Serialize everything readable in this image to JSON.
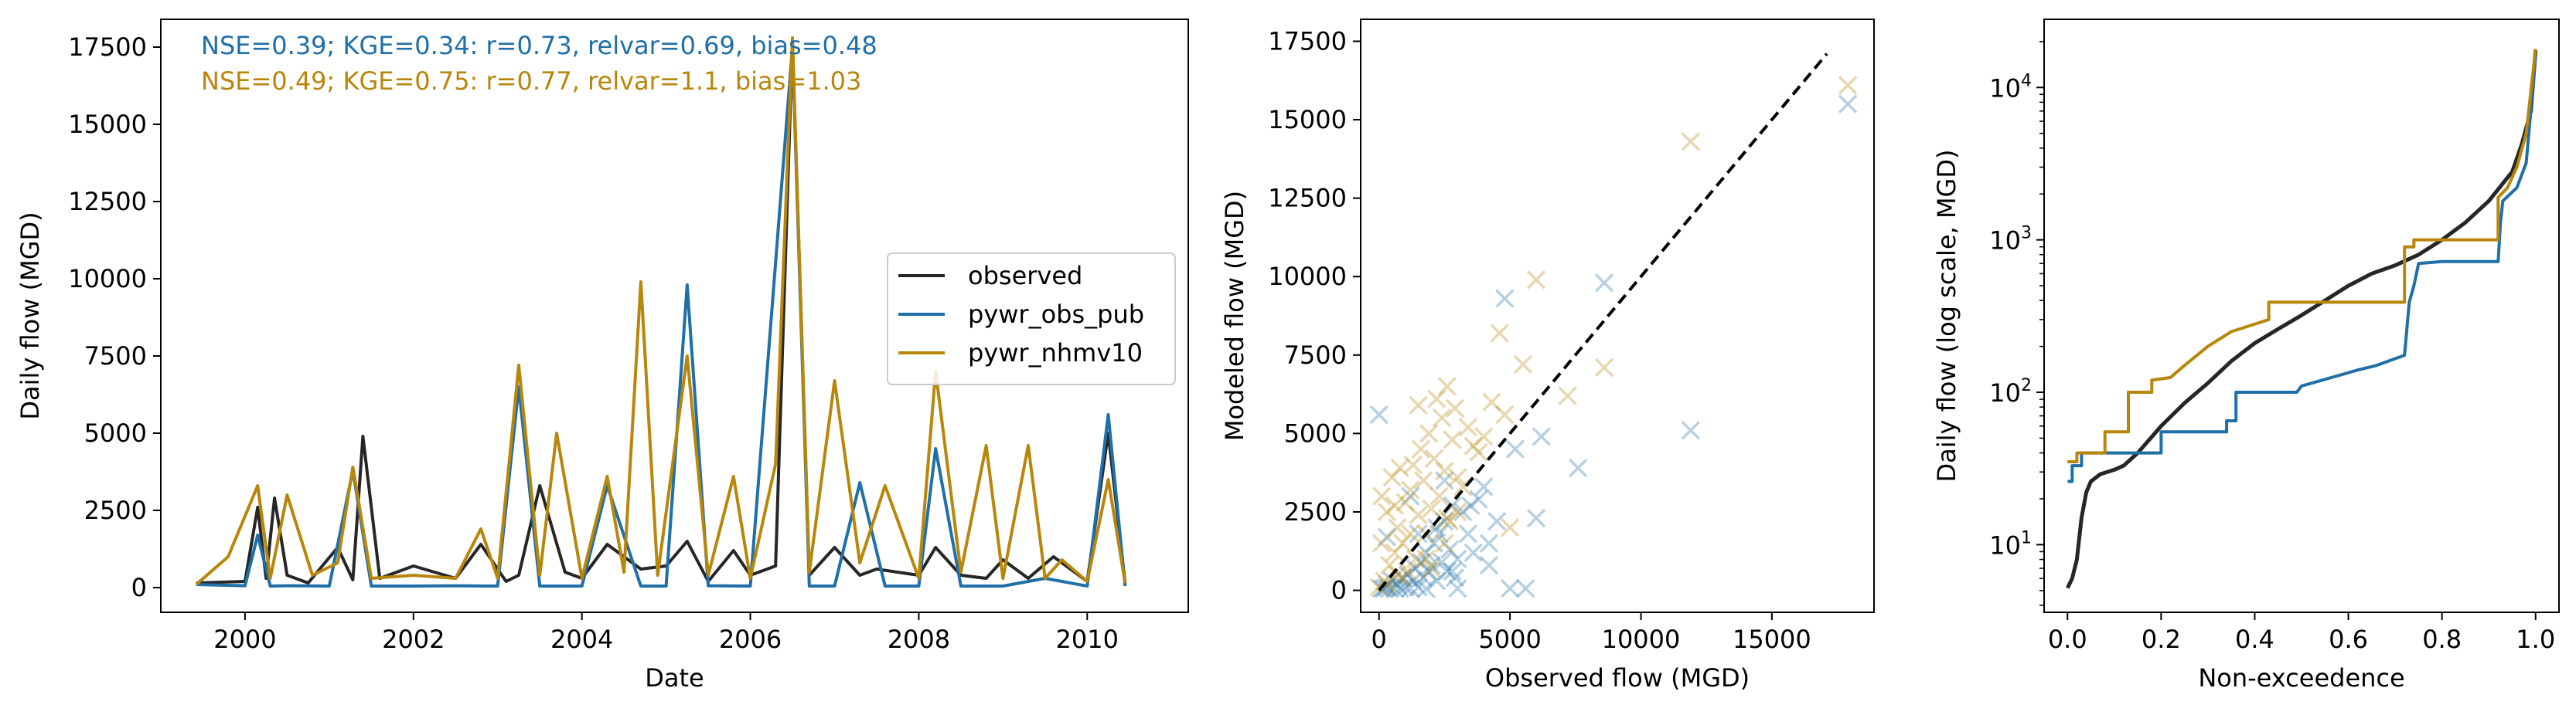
{
  "chart_data": [
    {
      "type": "line",
      "xlabel": "Date",
      "ylabel": "Daily flow (MGD)",
      "xlim": [
        1999.0,
        2011.2
      ],
      "ylim": [
        -800,
        18400
      ],
      "xticks": [
        2000,
        2002,
        2004,
        2006,
        2008,
        2010
      ],
      "yticks": [
        0,
        2500,
        5000,
        7500,
        10000,
        12500,
        15000,
        17500
      ],
      "annotations": [
        {
          "text": "NSE=0.39; KGE=0.34: r=0.73, relvar=0.69, bias=0.48",
          "color": "#1f6fa8"
        },
        {
          "text": "NSE=0.49; KGE=0.75: r=0.77, relvar=1.1, bias=1.03",
          "color": "#b8860b"
        }
      ],
      "legend": {
        "placement": "center-right"
      },
      "series": [
        {
          "name": "observed",
          "color": "#262626",
          "x": [
            1999.42,
            2000.0,
            2000.15,
            2000.25,
            2000.35,
            2000.5,
            2000.75,
            2001.1,
            2001.28,
            2001.4,
            2001.6,
            2002.0,
            2002.5,
            2002.8,
            2003.1,
            2003.25,
            2003.5,
            2003.8,
            2004.0,
            2004.3,
            2004.7,
            2005.0,
            2005.25,
            2005.5,
            2005.8,
            2006.0,
            2006.3,
            2006.5,
            2006.7,
            2007.0,
            2007.3,
            2007.5,
            2008.0,
            2008.2,
            2008.5,
            2008.8,
            2009.0,
            2009.3,
            2009.6,
            2010.0,
            2010.25,
            2010.45
          ],
          "y": [
            150,
            200,
            2600,
            300,
            2900,
            400,
            150,
            1300,
            250,
            4900,
            300,
            700,
            300,
            1400,
            200,
            400,
            3300,
            500,
            300,
            1400,
            600,
            700,
            1500,
            200,
            1200,
            400,
            700,
            17700,
            400,
            1300,
            400,
            600,
            400,
            1300,
            400,
            300,
            900,
            300,
            1000,
            200,
            5000,
            150
          ]
        },
        {
          "name": "pywr_obs_pub",
          "color": "#1f6fa8",
          "x": [
            1999.42,
            2000.0,
            2000.15,
            2000.3,
            2000.5,
            2001.0,
            2001.28,
            2001.5,
            2002.0,
            2002.5,
            2003.0,
            2003.25,
            2003.5,
            2004.0,
            2004.3,
            2004.7,
            2005.0,
            2005.25,
            2005.5,
            2006.0,
            2006.5,
            2006.7,
            2007.0,
            2007.3,
            2007.6,
            2008.0,
            2008.2,
            2008.5,
            2009.0,
            2009.5,
            2010.0,
            2010.25,
            2010.45
          ],
          "y": [
            100,
            60,
            1700,
            50,
            60,
            50,
            3800,
            50,
            50,
            60,
            50,
            6500,
            50,
            50,
            3300,
            50,
            50,
            9800,
            60,
            50,
            17500,
            50,
            50,
            3400,
            50,
            50,
            4500,
            50,
            50,
            300,
            50,
            5600,
            50
          ]
        },
        {
          "name": "pywr_nhmv10",
          "color": "#b8860b",
          "x": [
            1999.42,
            1999.8,
            2000.15,
            2000.3,
            2000.5,
            2000.8,
            2001.1,
            2001.28,
            2001.5,
            2002.0,
            2002.5,
            2002.8,
            2003.0,
            2003.25,
            2003.5,
            2003.7,
            2004.0,
            2004.3,
            2004.5,
            2004.7,
            2004.9,
            2005.25,
            2005.5,
            2005.8,
            2006.0,
            2006.3,
            2006.5,
            2006.7,
            2007.0,
            2007.3,
            2007.6,
            2008.0,
            2008.2,
            2008.5,
            2008.8,
            2009.0,
            2009.3,
            2009.5,
            2009.7,
            2010.0,
            2010.25,
            2010.45
          ],
          "y": [
            100,
            1000,
            3300,
            300,
            3000,
            400,
            800,
            3900,
            300,
            400,
            300,
            1900,
            300,
            7200,
            400,
            5000,
            300,
            3600,
            500,
            9900,
            400,
            7500,
            400,
            3600,
            300,
            4000,
            17800,
            500,
            6700,
            800,
            3300,
            300,
            7000,
            500,
            4600,
            300,
            4600,
            300,
            900,
            200,
            3500,
            150
          ]
        }
      ]
    },
    {
      "type": "scatter",
      "xlabel": "Observed flow (MGD)",
      "ylabel": "Modeled flow (MGD)",
      "xlim": [
        -700,
        18900
      ],
      "ylim": [
        -700,
        18200
      ],
      "xticks": [
        0,
        5000,
        10000,
        15000
      ],
      "yticks": [
        0,
        2500,
        5000,
        7500,
        10000,
        12500,
        15000,
        17500
      ],
      "reference_line": {
        "x": [
          0,
          17100
        ],
        "y": [
          0,
          17100
        ],
        "style": "dashed",
        "color": "#000000"
      },
      "series": [
        {
          "name": "pywr_obs_pub",
          "color": "#1f6fa8",
          "x": [
            100,
            200,
            300,
            400,
            500,
            600,
            700,
            800,
            900,
            1000,
            1100,
            1200,
            1300,
            1400,
            1500,
            1600,
            1700,
            1800,
            1900,
            2000,
            2100,
            2200,
            2300,
            2400,
            2500,
            2600,
            2700,
            2800,
            2900,
            3000,
            3200,
            3400,
            3600,
            3800,
            4000,
            4200,
            4500,
            4800,
            5000,
            5200,
            5600,
            6000,
            6200,
            7600,
            8600,
            11900,
            17900,
            0,
            300,
            1200,
            1800,
            2500,
            3000,
            3500,
            4200,
            2200,
            2800,
            1500
          ],
          "y": [
            50,
            60,
            100,
            50,
            300,
            50,
            200,
            60,
            400,
            100,
            500,
            60,
            300,
            700,
            100,
            900,
            400,
            1200,
            600,
            800,
            1500,
            300,
            1800,
            900,
            2200,
            600,
            1300,
            2700,
            400,
            1000,
            2500,
            1800,
            1200,
            2900,
            3300,
            800,
            2200,
            9300,
            60,
            4500,
            60,
            2300,
            4900,
            3900,
            9800,
            5100,
            15500,
            5600,
            1700,
            3000,
            50,
            3500,
            60,
            2700,
            1500,
            2000,
            600,
            1800
          ]
        },
        {
          "name": "pywr_nhmv10",
          "color": "#b8860b",
          "x": [
            0,
            100,
            200,
            300,
            400,
            500,
            600,
            700,
            800,
            900,
            1000,
            1100,
            1200,
            1300,
            1400,
            1500,
            1600,
            1700,
            1800,
            1900,
            2000,
            2100,
            2200,
            2300,
            2400,
            2500,
            2600,
            2700,
            2800,
            2900,
            3000,
            3200,
            3400,
            3600,
            3800,
            4000,
            4300,
            4600,
            4800,
            5000,
            5500,
            6000,
            7200,
            8600,
            11900,
            17900,
            100,
            300,
            600,
            900,
            1200,
            1500,
            2000,
            2500,
            3000,
            700,
            1800,
            2600
          ],
          "y": [
            100,
            1500,
            300,
            2500,
            800,
            3600,
            1200,
            2000,
            3900,
            1500,
            2800,
            600,
            3200,
            4000,
            1000,
            2400,
            4500,
            3500,
            1800,
            5000,
            2600,
            4200,
            6100,
            3000,
            5500,
            3800,
            6500,
            2200,
            4800,
            5800,
            3600,
            3300,
            5200,
            4600,
            4400,
            4900,
            6000,
            8200,
            5600,
            2000,
            7200,
            9900,
            6200,
            7100,
            14300,
            16100,
            3000,
            200,
            2700,
            400,
            1800,
            5900,
            700,
            1500,
            2500,
            500,
            1000,
            2300
          ]
        }
      ]
    },
    {
      "type": "line",
      "xlabel": "Non-exceedence",
      "ylabel": "Daily flow (log scale, MGD)",
      "yscale": "log",
      "xlim": [
        -0.05,
        1.05
      ],
      "ylim": [
        3.6,
        28000
      ],
      "xticks": [
        0.0,
        0.2,
        0.4,
        0.6,
        0.8,
        1.0
      ],
      "yticks": [
        {
          "value": 10,
          "label": "10",
          "exp": "1"
        },
        {
          "value": 100,
          "label": "10",
          "exp": "2"
        },
        {
          "value": 1000,
          "label": "10",
          "exp": "3"
        },
        {
          "value": 10000,
          "label": "10",
          "exp": "4"
        }
      ],
      "series": [
        {
          "name": "observed",
          "color": "#262626",
          "x": [
            0.0,
            0.01,
            0.02,
            0.03,
            0.04,
            0.05,
            0.07,
            0.1,
            0.12,
            0.15,
            0.2,
            0.25,
            0.3,
            0.35,
            0.4,
            0.45,
            0.5,
            0.55,
            0.6,
            0.65,
            0.7,
            0.75,
            0.8,
            0.85,
            0.9,
            0.95,
            0.97,
            0.99,
            1.0
          ],
          "y": [
            5.2,
            6,
            8,
            15,
            22,
            26,
            29,
            31,
            33,
            40,
            60,
            85,
            115,
            160,
            210,
            260,
            320,
            400,
            500,
            600,
            680,
            800,
            1000,
            1300,
            1800,
            2800,
            4200,
            7000,
            17500
          ]
        },
        {
          "name": "pywr_obs_pub",
          "color": "#1f6fa8",
          "x": [
            0.0,
            0.01,
            0.01,
            0.03,
            0.03,
            0.2,
            0.2,
            0.34,
            0.34,
            0.36,
            0.36,
            0.49,
            0.5,
            0.62,
            0.66,
            0.72,
            0.73,
            0.74,
            0.75,
            0.8,
            0.92,
            0.925,
            0.93,
            0.96,
            0.98,
            1.0
          ],
          "y": [
            26,
            26,
            33,
            33,
            40,
            40,
            55,
            55,
            65,
            65,
            100,
            100,
            110,
            140,
            150,
            175,
            390,
            500,
            700,
            720,
            720,
            1300,
            1800,
            2200,
            3200,
            16000
          ]
        },
        {
          "name": "pywr_nhmv10",
          "color": "#b8860b",
          "x": [
            0.0,
            0.02,
            0.02,
            0.08,
            0.08,
            0.13,
            0.13,
            0.18,
            0.18,
            0.22,
            0.25,
            0.3,
            0.35,
            0.43,
            0.43,
            0.72,
            0.72,
            0.74,
            0.74,
            0.92,
            0.92,
            0.94,
            0.96,
            0.98,
            1.0
          ],
          "y": [
            35,
            35,
            40,
            40,
            55,
            55,
            100,
            100,
            120,
            125,
            150,
            200,
            250,
            300,
            390,
            390,
            900,
            900,
            1000,
            1000,
            1900,
            2200,
            3000,
            5000,
            17900
          ]
        }
      ]
    }
  ]
}
